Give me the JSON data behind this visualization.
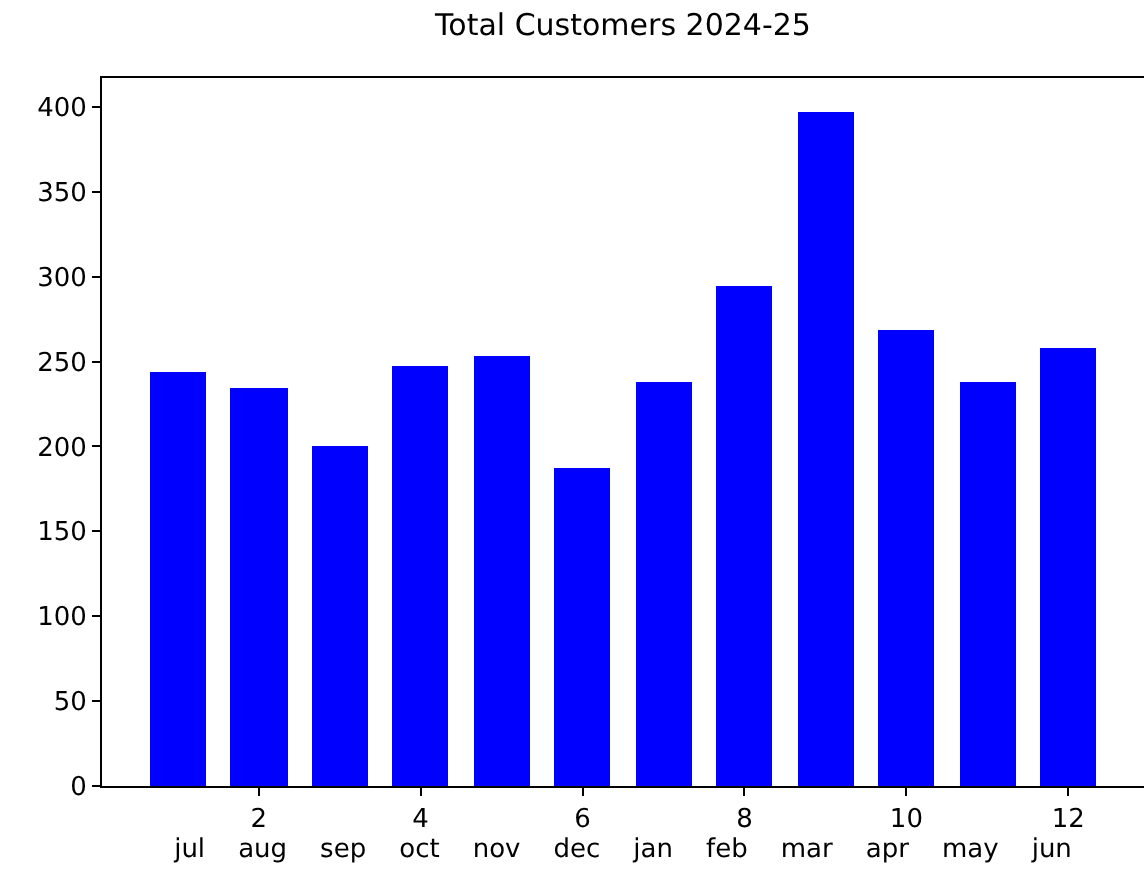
{
  "chart_data": {
    "type": "bar",
    "title": "Total Customers 2024-25",
    "x": [
      1,
      2,
      3,
      4,
      5,
      6,
      7,
      8,
      9,
      10,
      11,
      12
    ],
    "values": [
      244,
      235,
      200,
      247,
      253,
      187,
      238,
      294,
      397,
      269,
      238,
      258
    ],
    "color": "#0000ff",
    "xlim": [
      0.065,
      12.935
    ],
    "xticks": [
      2,
      4,
      6,
      8,
      10,
      12
    ],
    "xlabel": "jul    aug    sep    oct    nov    dec    jan    feb    mar    apr    may    jun",
    "ylim": [
      0,
      417
    ],
    "yticks": [
      0,
      50,
      100,
      150,
      200,
      250,
      300,
      350,
      400
    ]
  }
}
